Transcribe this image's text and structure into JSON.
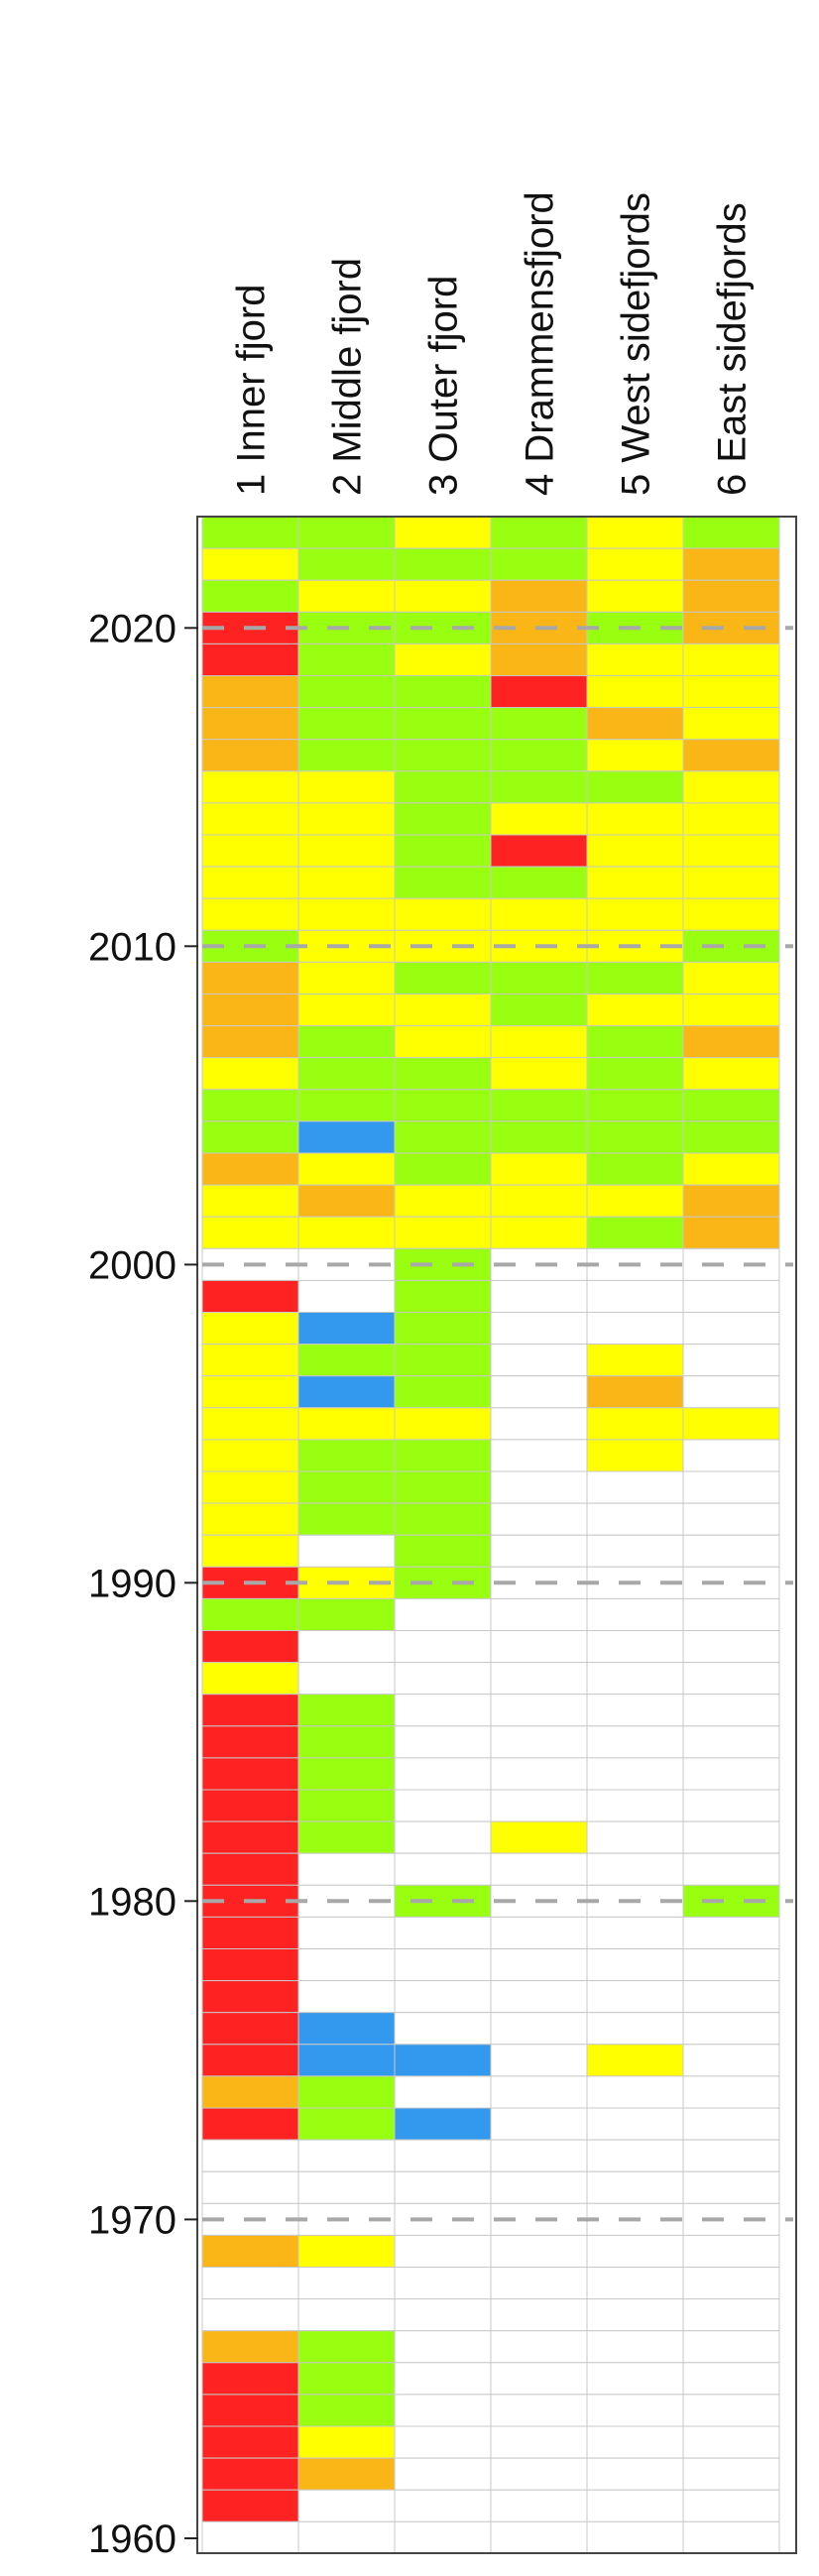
{
  "chart_data": {
    "type": "heatmap",
    "columns": [
      "1 Inner fjord",
      "2 Middle fjord",
      "3 Outer fjord",
      "4 Drammensfjord",
      "5 West sidefjords",
      "6 East sidefjords"
    ],
    "year_range": [
      1960,
      2023
    ],
    "year_ticks": [
      1960,
      1970,
      1980,
      1990,
      2000,
      2010,
      2020
    ],
    "colors": {
      "R": "#ff2222",
      "O": "#f9b616",
      "Y": "#ffff00",
      "G": "#99ff11",
      "B": "#3399ee",
      "W": "#ffffff"
    },
    "grid_color": "#c8c8c8",
    "tick_gridline": "dashed-gray",
    "rows": [
      {
        "year": 2023,
        "cells": [
          "G",
          "G",
          "Y",
          "G",
          "Y",
          "G"
        ]
      },
      {
        "year": 2022,
        "cells": [
          "Y",
          "G",
          "G",
          "G",
          "Y",
          "O"
        ]
      },
      {
        "year": 2021,
        "cells": [
          "G",
          "Y",
          "Y",
          "O",
          "Y",
          "O"
        ]
      },
      {
        "year": 2020,
        "cells": [
          "R",
          "G",
          "G",
          "O",
          "G",
          "O"
        ]
      },
      {
        "year": 2019,
        "cells": [
          "R",
          "G",
          "Y",
          "O",
          "Y",
          "Y"
        ]
      },
      {
        "year": 2018,
        "cells": [
          "O",
          "G",
          "G",
          "R",
          "Y",
          "Y"
        ]
      },
      {
        "year": 2017,
        "cells": [
          "O",
          "G",
          "G",
          "G",
          "O",
          "Y"
        ]
      },
      {
        "year": 2016,
        "cells": [
          "O",
          "G",
          "G",
          "G",
          "Y",
          "O"
        ]
      },
      {
        "year": 2015,
        "cells": [
          "Y",
          "Y",
          "G",
          "G",
          "G",
          "Y"
        ]
      },
      {
        "year": 2014,
        "cells": [
          "Y",
          "Y",
          "G",
          "Y",
          "Y",
          "Y"
        ]
      },
      {
        "year": 2013,
        "cells": [
          "Y",
          "Y",
          "G",
          "R",
          "Y",
          "Y"
        ]
      },
      {
        "year": 2012,
        "cells": [
          "Y",
          "Y",
          "G",
          "G",
          "Y",
          "Y"
        ]
      },
      {
        "year": 2011,
        "cells": [
          "Y",
          "Y",
          "Y",
          "Y",
          "Y",
          "Y"
        ]
      },
      {
        "year": 2010,
        "cells": [
          "G",
          "Y",
          "Y",
          "Y",
          "Y",
          "G"
        ]
      },
      {
        "year": 2009,
        "cells": [
          "O",
          "Y",
          "G",
          "G",
          "G",
          "Y"
        ]
      },
      {
        "year": 2008,
        "cells": [
          "O",
          "Y",
          "Y",
          "G",
          "Y",
          "Y"
        ]
      },
      {
        "year": 2007,
        "cells": [
          "O",
          "G",
          "Y",
          "Y",
          "G",
          "O"
        ]
      },
      {
        "year": 2006,
        "cells": [
          "Y",
          "G",
          "G",
          "Y",
          "G",
          "Y"
        ]
      },
      {
        "year": 2005,
        "cells": [
          "G",
          "G",
          "G",
          "G",
          "G",
          "G"
        ]
      },
      {
        "year": 2004,
        "cells": [
          "G",
          "B",
          "G",
          "G",
          "G",
          "G"
        ]
      },
      {
        "year": 2003,
        "cells": [
          "O",
          "Y",
          "G",
          "Y",
          "G",
          "Y"
        ]
      },
      {
        "year": 2002,
        "cells": [
          "Y",
          "O",
          "Y",
          "Y",
          "Y",
          "O"
        ]
      },
      {
        "year": 2001,
        "cells": [
          "Y",
          "Y",
          "Y",
          "Y",
          "G",
          "O"
        ]
      },
      {
        "year": 2000,
        "cells": [
          "W",
          "W",
          "G",
          "W",
          "W",
          "W"
        ]
      },
      {
        "year": 1999,
        "cells": [
          "R",
          "W",
          "G",
          "W",
          "W",
          "W"
        ]
      },
      {
        "year": 1998,
        "cells": [
          "Y",
          "B",
          "G",
          "W",
          "W",
          "W"
        ]
      },
      {
        "year": 1997,
        "cells": [
          "Y",
          "G",
          "G",
          "W",
          "Y",
          "W"
        ]
      },
      {
        "year": 1996,
        "cells": [
          "Y",
          "B",
          "G",
          "W",
          "O",
          "W"
        ]
      },
      {
        "year": 1995,
        "cells": [
          "Y",
          "Y",
          "Y",
          "W",
          "Y",
          "Y"
        ]
      },
      {
        "year": 1994,
        "cells": [
          "Y",
          "G",
          "G",
          "W",
          "Y",
          "W"
        ]
      },
      {
        "year": 1993,
        "cells": [
          "Y",
          "G",
          "G",
          "W",
          "W",
          "W"
        ]
      },
      {
        "year": 1992,
        "cells": [
          "Y",
          "G",
          "G",
          "W",
          "W",
          "W"
        ]
      },
      {
        "year": 1991,
        "cells": [
          "Y",
          "W",
          "G",
          "W",
          "W",
          "W"
        ]
      },
      {
        "year": 1990,
        "cells": [
          "R",
          "Y",
          "G",
          "W",
          "W",
          "W"
        ]
      },
      {
        "year": 1989,
        "cells": [
          "G",
          "G",
          "W",
          "W",
          "W",
          "W"
        ]
      },
      {
        "year": 1988,
        "cells": [
          "R",
          "W",
          "W",
          "W",
          "W",
          "W"
        ]
      },
      {
        "year": 1987,
        "cells": [
          "Y",
          "W",
          "W",
          "W",
          "W",
          "W"
        ]
      },
      {
        "year": 1986,
        "cells": [
          "R",
          "G",
          "W",
          "W",
          "W",
          "W"
        ]
      },
      {
        "year": 1985,
        "cells": [
          "R",
          "G",
          "W",
          "W",
          "W",
          "W"
        ]
      },
      {
        "year": 1984,
        "cells": [
          "R",
          "G",
          "W",
          "W",
          "W",
          "W"
        ]
      },
      {
        "year": 1983,
        "cells": [
          "R",
          "G",
          "W",
          "W",
          "W",
          "W"
        ]
      },
      {
        "year": 1982,
        "cells": [
          "R",
          "G",
          "W",
          "Y",
          "W",
          "W"
        ]
      },
      {
        "year": 1981,
        "cells": [
          "R",
          "W",
          "W",
          "W",
          "W",
          "W"
        ]
      },
      {
        "year": 1980,
        "cells": [
          "R",
          "W",
          "G",
          "W",
          "W",
          "G"
        ]
      },
      {
        "year": 1979,
        "cells": [
          "R",
          "W",
          "W",
          "W",
          "W",
          "W"
        ]
      },
      {
        "year": 1978,
        "cells": [
          "R",
          "W",
          "W",
          "W",
          "W",
          "W"
        ]
      },
      {
        "year": 1977,
        "cells": [
          "R",
          "W",
          "W",
          "W",
          "W",
          "W"
        ]
      },
      {
        "year": 1976,
        "cells": [
          "R",
          "B",
          "W",
          "W",
          "W",
          "W"
        ]
      },
      {
        "year": 1975,
        "cells": [
          "R",
          "B",
          "B",
          "W",
          "Y",
          "W"
        ]
      },
      {
        "year": 1974,
        "cells": [
          "O",
          "G",
          "W",
          "W",
          "W",
          "W"
        ]
      },
      {
        "year": 1973,
        "cells": [
          "R",
          "G",
          "B",
          "W",
          "W",
          "W"
        ]
      },
      {
        "year": 1972,
        "cells": [
          "W",
          "W",
          "W",
          "W",
          "W",
          "W"
        ]
      },
      {
        "year": 1971,
        "cells": [
          "W",
          "W",
          "W",
          "W",
          "W",
          "W"
        ]
      },
      {
        "year": 1970,
        "cells": [
          "W",
          "W",
          "W",
          "W",
          "W",
          "W"
        ]
      },
      {
        "year": 1969,
        "cells": [
          "O",
          "Y",
          "W",
          "W",
          "W",
          "W"
        ]
      },
      {
        "year": 1968,
        "cells": [
          "W",
          "W",
          "W",
          "W",
          "W",
          "W"
        ]
      },
      {
        "year": 1967,
        "cells": [
          "W",
          "W",
          "W",
          "W",
          "W",
          "W"
        ]
      },
      {
        "year": 1966,
        "cells": [
          "O",
          "G",
          "W",
          "W",
          "W",
          "W"
        ]
      },
      {
        "year": 1965,
        "cells": [
          "R",
          "G",
          "W",
          "W",
          "W",
          "W"
        ]
      },
      {
        "year": 1964,
        "cells": [
          "R",
          "G",
          "W",
          "W",
          "W",
          "W"
        ]
      },
      {
        "year": 1963,
        "cells": [
          "R",
          "Y",
          "W",
          "W",
          "W",
          "W"
        ]
      },
      {
        "year": 1962,
        "cells": [
          "R",
          "O",
          "W",
          "W",
          "W",
          "W"
        ]
      },
      {
        "year": 1961,
        "cells": [
          "R",
          "W",
          "W",
          "W",
          "W",
          "W"
        ]
      },
      {
        "year": 1960,
        "cells": [
          "W",
          "W",
          "W",
          "W",
          "W",
          "W"
        ]
      }
    ]
  }
}
